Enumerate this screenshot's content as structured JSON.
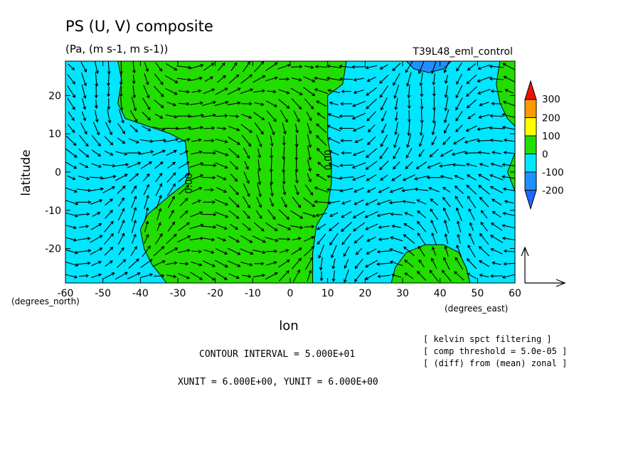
{
  "chart_data": {
    "type": "heatmap",
    "title": "PS (U, V) composite",
    "subtitle": "(Pa, (m s-1, m s-1))",
    "run_label": "T39L48_eml_control",
    "xlabel": "lon",
    "ylabel": "latitude",
    "x_unit_label": "(degrees_east)",
    "y_unit_label": "(degrees_north)",
    "xlim": [
      -60,
      60
    ],
    "ylim": [
      -29,
      29
    ],
    "x_ticks": [
      -60,
      -50,
      -40,
      -30,
      -20,
      -10,
      0,
      10,
      20,
      30,
      40,
      50,
      60
    ],
    "y_ticks": [
      -20,
      -10,
      0,
      10,
      20
    ],
    "contour_label": "0.00",
    "colorbar": {
      "levels": [
        -200,
        -100,
        0,
        100,
        200,
        300
      ],
      "colors": [
        "#1e90ff",
        "#00e6ff",
        "#22dd00",
        "#ffff00",
        "#ff9900",
        "#ee1100"
      ],
      "extend_low_color": "#1e66ff",
      "extend_high_color": "#ee1100"
    },
    "field_colors": {
      "negative": "#00e6ff",
      "positive": "#22dd00",
      "strong_negative": "#1e90ff"
    },
    "positive_regions": [
      {
        "name": "central-band",
        "polygon": [
          [
            -46,
            29
          ],
          [
            -45,
            24
          ],
          [
            -46,
            18
          ],
          [
            -44,
            14
          ],
          [
            -38,
            12
          ],
          [
            -32,
            10
          ],
          [
            -28,
            8
          ],
          [
            -27,
            0
          ],
          [
            -28,
            -3
          ],
          [
            -32,
            -6
          ],
          [
            -38,
            -11
          ],
          [
            -40,
            -15
          ],
          [
            -39,
            -20
          ],
          [
            -37,
            -24
          ],
          [
            -33,
            -29
          ],
          [
            6,
            -29
          ],
          [
            6,
            -21
          ],
          [
            7,
            -14
          ],
          [
            10,
            -9
          ],
          [
            11,
            -3
          ],
          [
            11,
            3
          ],
          [
            10,
            9
          ],
          [
            10,
            14
          ],
          [
            10,
            20
          ],
          [
            14,
            23
          ],
          [
            15,
            29
          ]
        ]
      },
      {
        "name": "southeast-blob",
        "polygon": [
          [
            27,
            -29
          ],
          [
            28,
            -25
          ],
          [
            31,
            -21
          ],
          [
            36,
            -19
          ],
          [
            41,
            -19
          ],
          [
            45,
            -21
          ],
          [
            47,
            -25
          ],
          [
            48,
            -29
          ]
        ]
      },
      {
        "name": "east-edge-north",
        "polygon": [
          [
            60,
            29
          ],
          [
            56,
            29
          ],
          [
            55,
            23
          ],
          [
            56,
            18
          ],
          [
            58,
            14
          ],
          [
            60,
            12
          ]
        ]
      },
      {
        "name": "east-edge-equator",
        "polygon": [
          [
            60,
            5
          ],
          [
            58,
            0
          ],
          [
            60,
            -5
          ]
        ]
      }
    ],
    "negative_strong_regions": [
      {
        "name": "north-blob",
        "polygon": [
          [
            31,
            29
          ],
          [
            33,
            27
          ],
          [
            37,
            26
          ],
          [
            41,
            27
          ],
          [
            43,
            29
          ]
        ]
      }
    ],
    "annotations": {
      "contour_interval": "CONTOUR INTERVAL = 5.000E+01",
      "units": "XUNIT = 6.000E+00, YUNIT = 6.000E+00",
      "notes": [
        "[ kelvin spct filtering ]",
        "[ comp threshold = 5.0e-05 ]",
        "[ (diff) from (mean) zonal ]"
      ]
    }
  }
}
